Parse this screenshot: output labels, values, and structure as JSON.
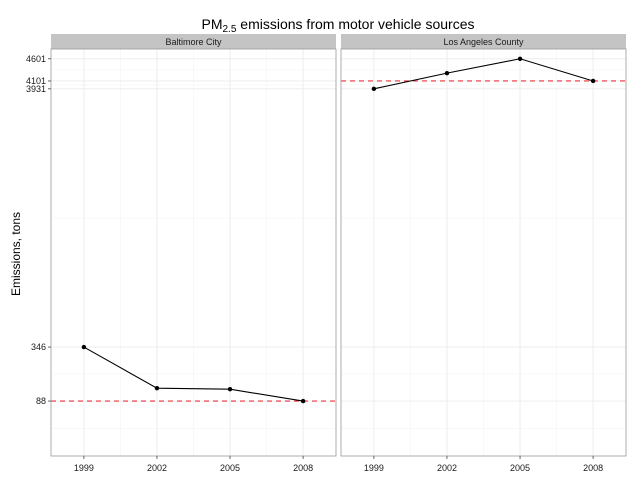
{
  "chart_data": {
    "type": "line",
    "title": "PM2.5 emissions from motor vehicle sources",
    "title_parts": {
      "base": "PM",
      "subscript": "2.5",
      "rest": " emissions from motor vehicle sources"
    },
    "xlabel": "",
    "ylabel": "Emissions, tons",
    "grid": true,
    "legend": "none",
    "x": [
      1999,
      2002,
      2005,
      2008
    ],
    "x_ticks": [
      "1999",
      "2002",
      "2005",
      "2008"
    ],
    "y_ticks": [
      88,
      346,
      3931,
      4101,
      4601
    ],
    "y_tick_labels": [
      "88",
      "346",
      "3931",
      "4101",
      "4601"
    ],
    "ylim": [
      0,
      4830
    ],
    "y_scale": "sqrt",
    "panels": [
      {
        "name": "Baltimore City",
        "series": [
          {
            "values": [
              346,
              134,
              130,
              88
            ]
          }
        ],
        "reference_line": 88
      },
      {
        "name": "Los Angeles County",
        "series": [
          {
            "values": [
              3931,
              4274,
              4601,
              4101
            ]
          }
        ],
        "reference_line": 4101
      }
    ],
    "colors": {
      "line": "#000000",
      "point": "#000000",
      "reference_line": "#e8313b",
      "strip_fill": "#c4c4c4",
      "panel_border": "#9a9a9a",
      "grid": "#ebebeb"
    }
  }
}
